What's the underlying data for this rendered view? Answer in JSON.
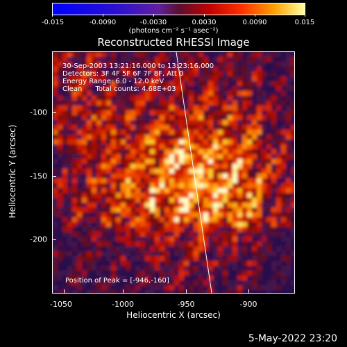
{
  "colorbar": {
    "ticks": [
      "-0.015",
      "-0.0090",
      "-0.0030",
      "0.0030",
      "0.0090",
      "0.015"
    ],
    "units": "(photons cm⁻² s⁻¹ asec⁻²)"
  },
  "title": "Reconstructed RHESSI Image",
  "info": {
    "time": "30-Sep-2003 13:21:16.000 to 13:23:16.000",
    "detectors": "Detectors: 3F 4F 5F 6F 7F 8F, Att 0",
    "energy": "Energy Range: 6.0 - 12.0 keV",
    "clean": "Clean      Total counts: 4.68E+03",
    "peak": "Position of Peak = [-946,-160]"
  },
  "chart_data": {
    "type": "heatmap",
    "title": "Reconstructed RHESSI Image",
    "xlabel": "Heliocentric X (arcsec)",
    "ylabel": "Heliocentric Y (arcsec)",
    "xticks": [
      "-1050",
      "-1000",
      "-950",
      "-900"
    ],
    "yticks": [
      "-100",
      "-150",
      "-200"
    ],
    "xlim": [
      -1055,
      -868
    ],
    "ylim": [
      -246,
      -59
    ],
    "colorbar_range": [
      -0.015,
      0.015
    ],
    "peak": [
      -946,
      -160
    ]
  },
  "datestamp": "5-May-2022 23:20",
  "colors": {
    "background": "#000000",
    "text": "#ffffff"
  }
}
